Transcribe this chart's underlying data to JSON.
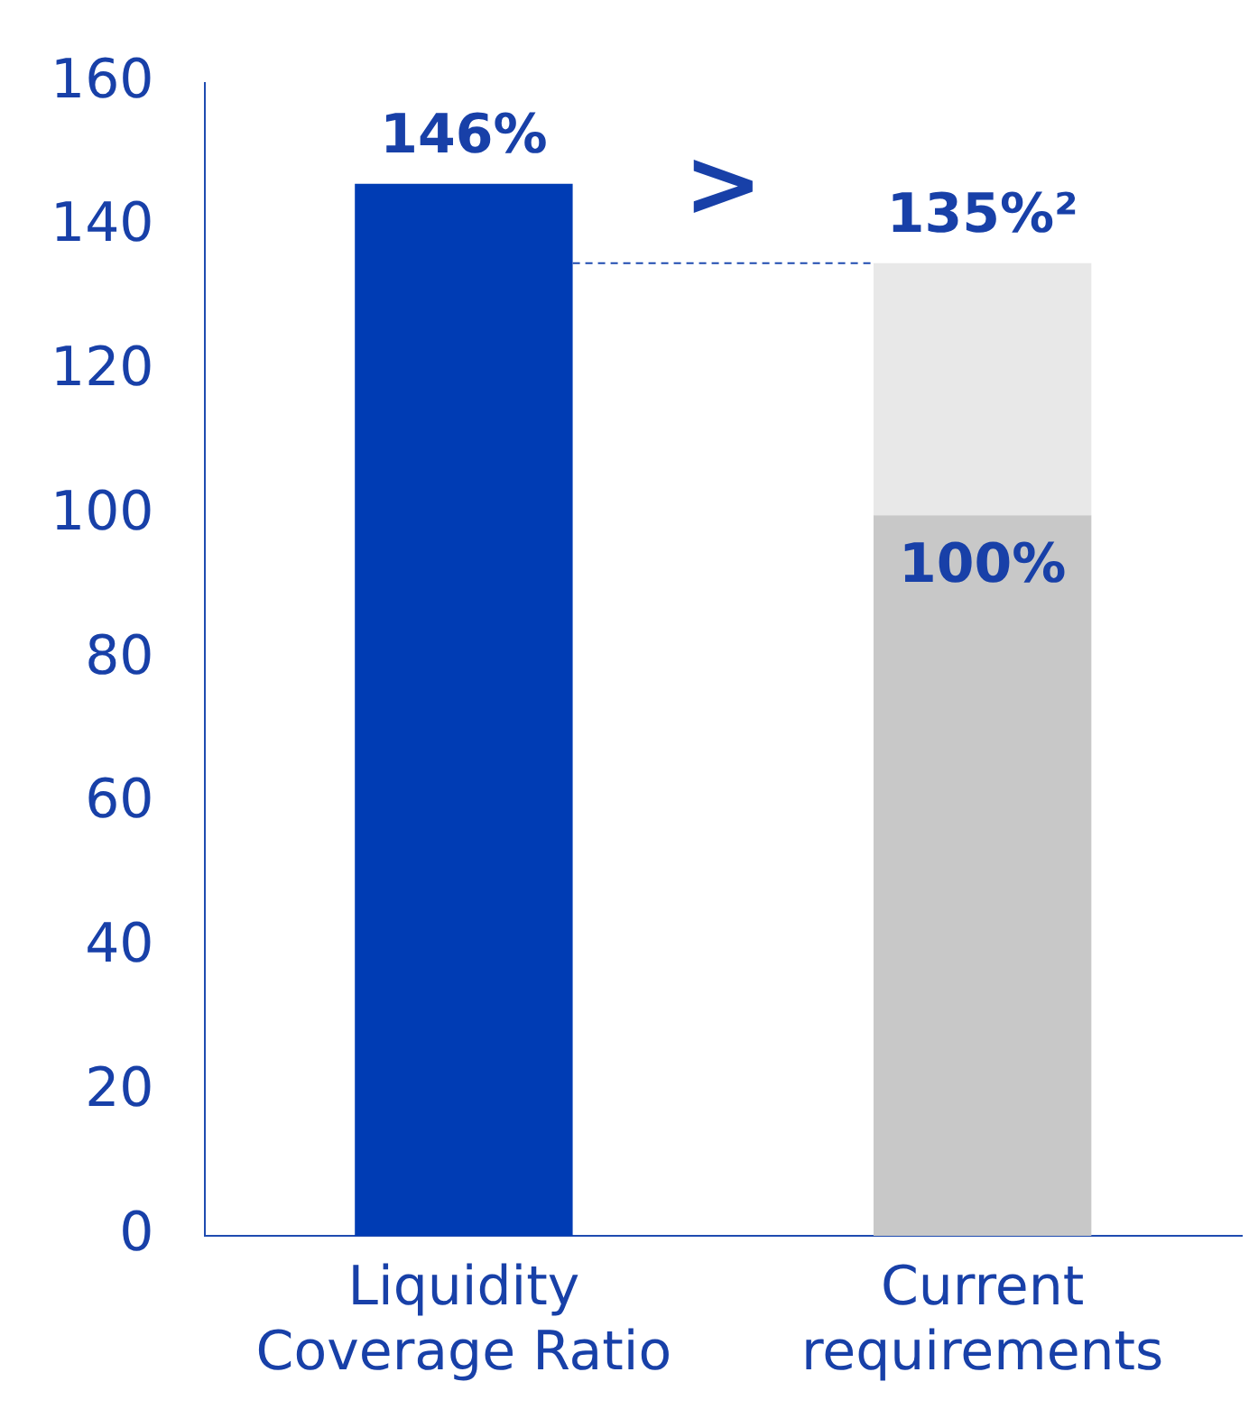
{
  "chart_data": {
    "type": "bar",
    "stacked": true,
    "categories": [
      "Liquidity Coverage Ratio",
      "Current requirements"
    ],
    "series": [
      {
        "color": "#003cb4",
        "values": [
          146,
          null
        ]
      },
      {
        "color": "#c8c8c8",
        "values": [
          null,
          100
        ],
        "value_labels": [
          null,
          "100%"
        ]
      },
      {
        "color": "#e8e8e8",
        "values": [
          null,
          35
        ]
      }
    ],
    "totals": [
      "146%",
      "135%²"
    ],
    "ref_lines": [
      {
        "axis": "y",
        "value": 135,
        "color": "#1f4bb0",
        "line_style": "dashed"
      }
    ],
    "annotations": [
      ">"
    ],
    "ylim": [
      0,
      160
    ],
    "yticks": [
      0,
      20,
      40,
      60,
      80,
      100,
      120,
      140,
      160
    ],
    "grid": false,
    "legend": false
  }
}
